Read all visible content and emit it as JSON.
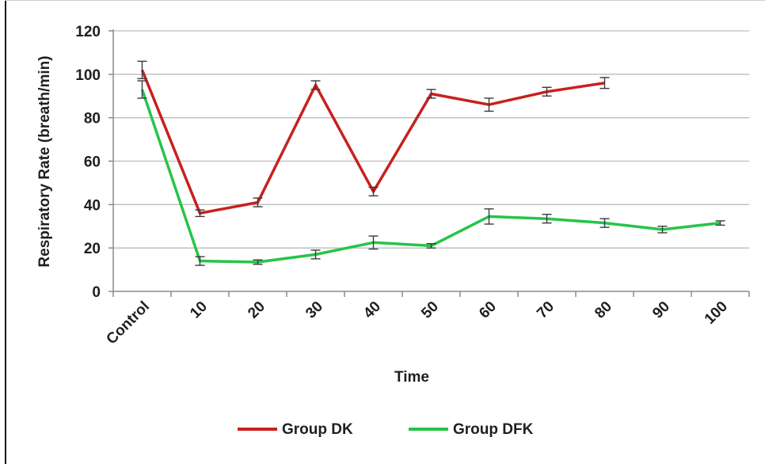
{
  "chart_data": {
    "type": "line",
    "title": "",
    "xlabel": "Time",
    "ylabel": "Respiratory Rate (breath/min)",
    "ylim": [
      0,
      120
    ],
    "yticks": [
      0,
      20,
      40,
      60,
      80,
      100,
      120
    ],
    "categories": [
      "Control",
      "10",
      "20",
      "30",
      "40",
      "50",
      "60",
      "70",
      "80",
      "90",
      "100"
    ],
    "grid": "horizontal",
    "legend_position": "bottom",
    "series": [
      {
        "name": "Group DK",
        "color": "#c8201e",
        "values": [
          102,
          36,
          41,
          95,
          46,
          91,
          86,
          92,
          96,
          null,
          null
        ],
        "errors": [
          4,
          1.5,
          2,
          2,
          2,
          2,
          3,
          2,
          2.5,
          null,
          null
        ]
      },
      {
        "name": "Group DFK",
        "color": "#27c44a",
        "values": [
          93,
          14,
          13.5,
          17,
          22.5,
          21,
          34.5,
          33.5,
          31.5,
          28.5,
          31.5
        ],
        "errors": [
          4,
          2,
          1,
          2,
          3,
          1,
          3.5,
          2,
          2,
          1.5,
          1
        ]
      }
    ]
  }
}
